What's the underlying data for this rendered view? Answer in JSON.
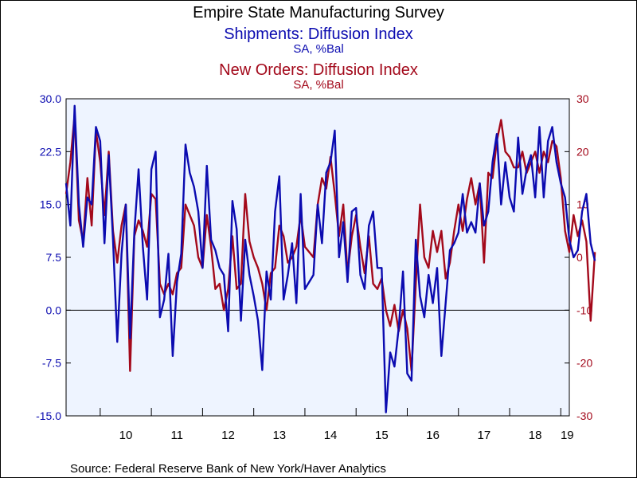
{
  "colors": {
    "plot_bg": "#eef4ff",
    "shipments": "#0b0bb0",
    "new_orders": "#a3091b",
    "zero_line": "#000000"
  },
  "source_note": "Source:  Federal Reserve Bank of New York/Haver Analytics",
  "chart_data": {
    "type": "line",
    "title": "Empire State Manufacturing Survey",
    "x": {
      "start_year": 2009,
      "start_month": 5,
      "end_year": 2019,
      "end_month": 3,
      "tick_labels": [
        "10",
        "11",
        "12",
        "13",
        "14",
        "15",
        "16",
        "17",
        "18",
        "19"
      ]
    },
    "left_axis": {
      "ylim": [
        -15,
        30
      ],
      "ticks": [
        "30.0",
        "22.5",
        "15.0",
        "7.5",
        "0.0",
        "-7.5",
        "-15.0"
      ]
    },
    "right_axis": {
      "ylim": [
        -30,
        30
      ],
      "ticks": [
        "30",
        "20",
        "10",
        "0",
        "-10",
        "-20",
        "-30"
      ]
    },
    "grid": false,
    "series": [
      {
        "name": "Shipments: Diffusion Index",
        "unit": "SA, %Bal",
        "axis": "left",
        "values": [
          18,
          12,
          29,
          15,
          9,
          16,
          15,
          26,
          24,
          9.5,
          22,
          10,
          -4.5,
          8,
          15,
          -4,
          11,
          20,
          9,
          1.5,
          20,
          22.5,
          -1,
          1.5,
          8,
          -6.5,
          4,
          8,
          23.5,
          19.5,
          17.5,
          14,
          6,
          20.5,
          10,
          8.5,
          6,
          5,
          -3,
          15.5,
          11.5,
          -1.5,
          10,
          5,
          2,
          -1.5,
          -8.5,
          5.5,
          1.5,
          14,
          19,
          1.5,
          5,
          9.5,
          1,
          16.5,
          3,
          4,
          5,
          15,
          9.5,
          19.5,
          21,
          25.5,
          7.5,
          12.5,
          4,
          14,
          14.5,
          5,
          3,
          12,
          14,
          6,
          6,
          -14.5,
          -6,
          -8,
          -2.5,
          5.5,
          -9,
          -10,
          10,
          2,
          -1,
          5,
          1,
          6,
          -6.5,
          1,
          8.5,
          9.5,
          11,
          16.5,
          11,
          12.5,
          11,
          18,
          12,
          14,
          21,
          25,
          15,
          21,
          16,
          14,
          24.5,
          16.5,
          20,
          22,
          16,
          26,
          16,
          24,
          26,
          21,
          18,
          16,
          10,
          7.5,
          8.5,
          14,
          16.5,
          9.5,
          7
        ]
      },
      {
        "name": "New Orders: Diffusion Index",
        "unit": "SA, %Bal",
        "axis": "right",
        "values": [
          12,
          18,
          27,
          7,
          3,
          15,
          6,
          24,
          18,
          8,
          20,
          5,
          -1,
          6,
          10,
          -21.5,
          4,
          7,
          5,
          2,
          12,
          11,
          -5,
          -7,
          -5,
          -7,
          -3,
          -2,
          10,
          8,
          6,
          0,
          -2,
          8,
          2,
          -6,
          -5,
          -10,
          -6,
          4,
          -6,
          -5,
          12,
          3,
          0,
          -2,
          -5,
          -10,
          -3,
          -2,
          6,
          4,
          -1,
          0,
          2,
          8,
          2,
          1,
          0,
          10,
          15,
          13,
          19,
          12,
          4,
          10,
          -3,
          4,
          8,
          2,
          -3,
          4,
          -5,
          -6,
          -4,
          -10,
          -13,
          -9,
          -14,
          -10,
          -13.5,
          -21.5,
          -5,
          10,
          0,
          -2,
          5,
          1,
          5,
          -4,
          -1,
          5,
          10,
          5,
          11,
          15,
          10,
          14,
          -1,
          16,
          15,
          22,
          26,
          20,
          19,
          17,
          17,
          20,
          16,
          18,
          20,
          16,
          20,
          18,
          22,
          21,
          15,
          5,
          1,
          8,
          4,
          7,
          3,
          -12,
          1
        ]
      }
    ]
  }
}
